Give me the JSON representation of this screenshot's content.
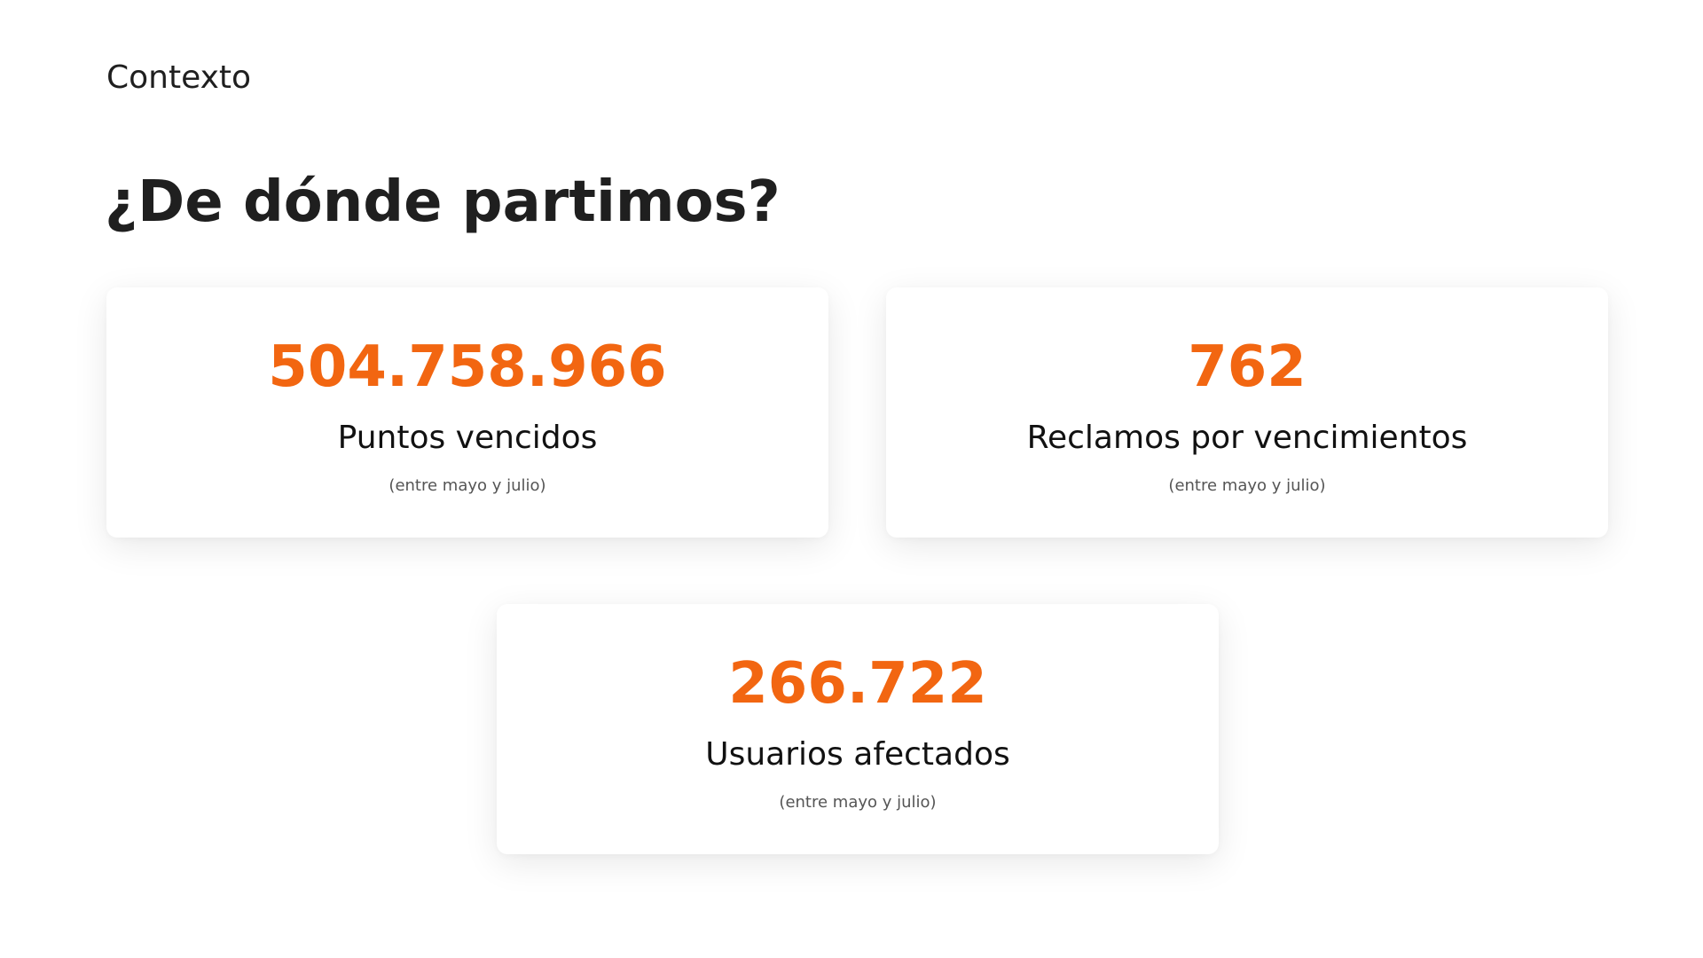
{
  "header": {
    "section_label": "Contexto",
    "title": "¿De dónde partimos?"
  },
  "colors": {
    "accent": "#f26611",
    "text": "#1f1f1f",
    "muted": "#555555",
    "background": "#ffffff"
  },
  "cards": [
    {
      "value": "504.758.966",
      "label": "Puntos vencidos",
      "note": "(entre mayo y julio)"
    },
    {
      "value": "762",
      "label": "Reclamos por vencimientos",
      "note": "(entre mayo y julio)"
    },
    {
      "value": "266.722",
      "label": "Usuarios afectados",
      "note": "(entre mayo y julio)"
    }
  ]
}
